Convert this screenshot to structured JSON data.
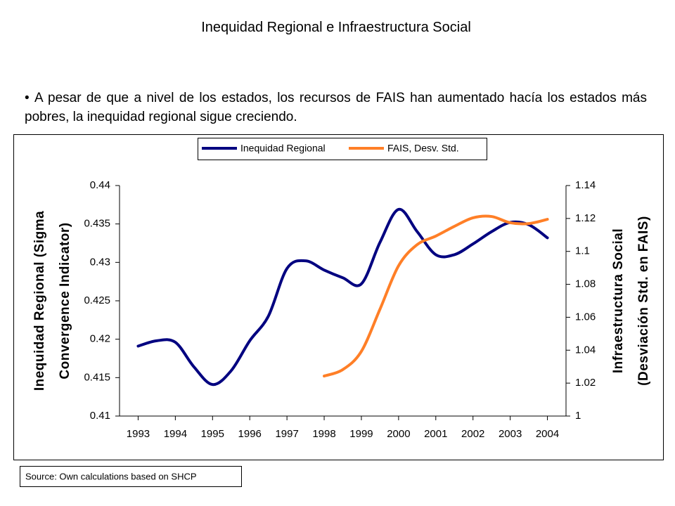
{
  "chart_data": {
    "type": "line",
    "title": "Inequidad Regional e Infraestructura Social",
    "bullet": "A pesar de que a nivel de los estados, los recursos de FAIS han aumentado hacía los estados más pobres, la inequidad regional sigue creciendo.",
    "ylabel": [
      "Inequidad Regional (Sigma",
      "Convergence Indicator)"
    ],
    "y2label": [
      "Infraestructura Social",
      "(Desviación Std. en FAIS)"
    ],
    "source": "Source: Own calculations based on SHCP",
    "xlim": [
      1992.5,
      2004.5
    ],
    "xticks": [
      1993,
      1994,
      1995,
      1996,
      1997,
      1998,
      1999,
      2000,
      2001,
      2002,
      2003,
      2004
    ],
    "ylim": [
      0.41,
      0.44
    ],
    "yticks": [
      0.41,
      0.415,
      0.42,
      0.425,
      0.43,
      0.435,
      0.44
    ],
    "y2lim": [
      1,
      1.14
    ],
    "y2ticks": [
      1,
      1.02,
      1.04,
      1.06,
      1.08,
      1.1,
      1.12,
      1.14
    ],
    "legend": "top",
    "series": [
      {
        "name": "Inequidad Regional",
        "color": "#000080",
        "x": [
          1993,
          1993.5,
          1994,
          1994.5,
          1995,
          1995.5,
          1996,
          1996.5,
          1997,
          1997.5,
          1998,
          1998.5,
          1999,
          1999.5,
          2000,
          2000.5,
          2001,
          2001.5,
          2002,
          2002.5,
          2003,
          2003.5,
          2004
        ],
        "values": [
          0.4191,
          0.4198,
          0.4196,
          0.4164,
          0.4141,
          0.4159,
          0.4198,
          0.423,
          0.4292,
          0.4302,
          0.429,
          0.428,
          0.4272,
          0.4326,
          0.4369,
          0.434,
          0.431,
          0.431,
          0.4324,
          0.434,
          0.4352,
          0.4349,
          0.4332
        ]
      },
      {
        "name": "FAIS, Desv. Std.",
        "color": "#ff7f27",
        "axis": "y2",
        "x": [
          1998,
          1998.5,
          1999,
          1999.5,
          2000,
          2000.5,
          2001,
          2001.5,
          2002,
          2002.5,
          2003,
          2003.5,
          2004
        ],
        "values": [
          1.0243,
          1.0282,
          1.0393,
          1.0649,
          1.0913,
          1.1041,
          1.1093,
          1.1152,
          1.1204,
          1.1212,
          1.1174,
          1.1169,
          1.1195
        ]
      }
    ]
  }
}
